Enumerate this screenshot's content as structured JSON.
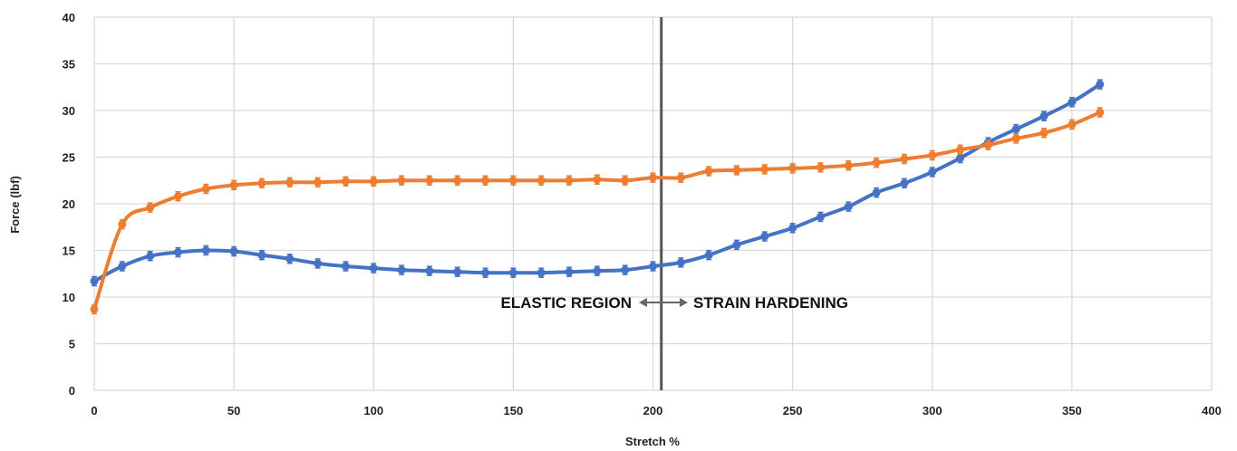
{
  "chart_data": {
    "type": "line",
    "title": "",
    "xlabel": "Stretch %",
    "ylabel": "Force (lbf)",
    "xlim": [
      0,
      400
    ],
    "ylim": [
      0,
      40
    ],
    "xticks": [
      0,
      50,
      100,
      150,
      200,
      250,
      300,
      350,
      400
    ],
    "yticks": [
      0,
      5,
      10,
      15,
      20,
      25,
      30,
      35,
      40
    ],
    "grid": true,
    "legend": "none",
    "divider_x": 203,
    "annotations": {
      "left": "ELASTIC REGION",
      "right": "STRAIN HARDENING"
    },
    "series": [
      {
        "color": "#4472C4",
        "x": [
          0,
          10,
          20,
          30,
          40,
          50,
          60,
          70,
          80,
          90,
          100,
          110,
          120,
          130,
          140,
          150,
          160,
          170,
          180,
          190,
          200,
          210,
          220,
          230,
          240,
          250,
          260,
          270,
          280,
          290,
          300,
          310,
          320,
          330,
          340,
          350,
          360
        ],
        "y": [
          11.7,
          13.3,
          14.4,
          14.8,
          15.0,
          14.9,
          14.5,
          14.1,
          13.6,
          13.3,
          13.1,
          12.9,
          12.8,
          12.7,
          12.6,
          12.6,
          12.6,
          12.7,
          12.8,
          12.9,
          13.3,
          13.7,
          14.5,
          15.6,
          16.5,
          17.4,
          18.6,
          19.7,
          21.2,
          22.2,
          23.4,
          24.9,
          26.6,
          28.0,
          29.4,
          30.9,
          32.8
        ]
      },
      {
        "color": "#ED7D31",
        "x": [
          0,
          10,
          20,
          30,
          40,
          50,
          60,
          70,
          80,
          90,
          100,
          110,
          120,
          130,
          140,
          150,
          160,
          170,
          180,
          190,
          200,
          210,
          220,
          230,
          240,
          250,
          260,
          270,
          280,
          290,
          300,
          310,
          320,
          330,
          340,
          350,
          360
        ],
        "y": [
          8.7,
          17.8,
          19.6,
          20.8,
          21.6,
          22.0,
          22.2,
          22.3,
          22.3,
          22.4,
          22.4,
          22.5,
          22.5,
          22.5,
          22.5,
          22.5,
          22.5,
          22.5,
          22.6,
          22.5,
          22.8,
          22.8,
          23.5,
          23.6,
          23.7,
          23.8,
          23.9,
          24.1,
          24.4,
          24.8,
          25.2,
          25.8,
          26.3,
          27.0,
          27.6,
          28.5,
          29.8
        ]
      }
    ]
  }
}
